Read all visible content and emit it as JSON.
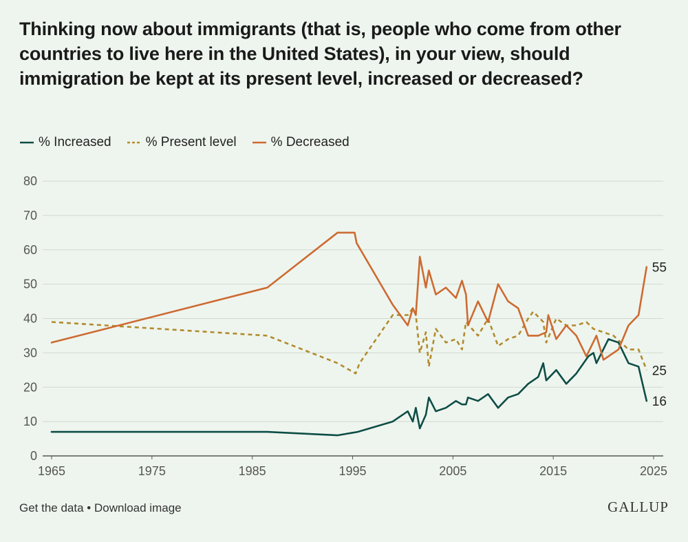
{
  "title": "Thinking now about immigrants (that is, people who come from other countries to live here in the United States), in your view, should immigration be kept at its present level, increased or decreased?",
  "footer": {
    "get_data": "Get the data",
    "separator": " • ",
    "download": "Download image",
    "logo": "GALLUP"
  },
  "chart_data": {
    "type": "line",
    "xlim": [
      1965,
      2025
    ],
    "ylim": [
      0,
      80
    ],
    "x_ticks": [
      "1965",
      "1975",
      "1985",
      "1995",
      "2005",
      "2015",
      "2025"
    ],
    "y_ticks": [
      "0",
      "10",
      "20",
      "30",
      "40",
      "50",
      "60",
      "70",
      "80"
    ],
    "grid": "horizontal",
    "legend_position": "top-left",
    "series": [
      {
        "name": "% Increased",
        "color": "#0d4d46",
        "dash": false,
        "end_label": "16",
        "points": [
          [
            1965,
            7
          ],
          [
            1986.5,
            7
          ],
          [
            1993.5,
            6
          ],
          [
            1995.5,
            7
          ],
          [
            1999,
            10
          ],
          [
            2000.5,
            13
          ],
          [
            2001,
            10
          ],
          [
            2001.3,
            14
          ],
          [
            2001.7,
            8
          ],
          [
            2002.3,
            12
          ],
          [
            2002.6,
            17
          ],
          [
            2003.3,
            13
          ],
          [
            2004.3,
            14
          ],
          [
            2005.3,
            16
          ],
          [
            2005.9,
            15
          ],
          [
            2006.3,
            15
          ],
          [
            2006.5,
            17
          ],
          [
            2007.5,
            16
          ],
          [
            2008.5,
            18
          ],
          [
            2009.5,
            14
          ],
          [
            2010.5,
            17
          ],
          [
            2011.5,
            18
          ],
          [
            2012.5,
            21
          ],
          [
            2013.5,
            23
          ],
          [
            2014,
            27
          ],
          [
            2014.3,
            22
          ],
          [
            2015.3,
            25
          ],
          [
            2016.3,
            21
          ],
          [
            2017.3,
            24
          ],
          [
            2018.5,
            29
          ],
          [
            2019,
            30
          ],
          [
            2019.3,
            27
          ],
          [
            2020.5,
            34
          ],
          [
            2021.5,
            33
          ],
          [
            2022.5,
            27
          ],
          [
            2023.5,
            26
          ],
          [
            2024.3,
            16
          ]
        ]
      },
      {
        "name": "% Present level",
        "color": "#b28a2d",
        "dash": true,
        "end_label": "25",
        "points": [
          [
            1965,
            39
          ],
          [
            1986.5,
            35
          ],
          [
            1993.5,
            27
          ],
          [
            1995.3,
            24
          ],
          [
            1995.7,
            27
          ],
          [
            1999,
            41
          ],
          [
            2000.5,
            41
          ],
          [
            2001,
            43
          ],
          [
            2001.3,
            41
          ],
          [
            2001.7,
            30
          ],
          [
            2002.3,
            36
          ],
          [
            2002.6,
            26
          ],
          [
            2003.3,
            37
          ],
          [
            2004.3,
            33
          ],
          [
            2005.3,
            34
          ],
          [
            2005.9,
            31
          ],
          [
            2006.3,
            39
          ],
          [
            2007.5,
            35
          ],
          [
            2008.5,
            40
          ],
          [
            2009.5,
            32
          ],
          [
            2010.5,
            34
          ],
          [
            2011.5,
            35
          ],
          [
            2012.5,
            40
          ],
          [
            2013,
            42
          ],
          [
            2014,
            39
          ],
          [
            2014.3,
            33
          ],
          [
            2015.3,
            40
          ],
          [
            2016.3,
            38
          ],
          [
            2017.3,
            38
          ],
          [
            2018.3,
            39
          ],
          [
            2019,
            37
          ],
          [
            2021,
            35
          ],
          [
            2022.5,
            31
          ],
          [
            2023.5,
            31
          ],
          [
            2024.3,
            25
          ]
        ]
      },
      {
        "name": "% Decreased",
        "color": "#cd6a31",
        "dash": false,
        "end_label": "55",
        "points": [
          [
            1965,
            33
          ],
          [
            1986.5,
            49
          ],
          [
            1993.5,
            65
          ],
          [
            1995.2,
            65
          ],
          [
            1995.4,
            62
          ],
          [
            1999,
            44
          ],
          [
            2000.5,
            38
          ],
          [
            2001,
            43
          ],
          [
            2001.3,
            41
          ],
          [
            2001.7,
            58
          ],
          [
            2002.3,
            49
          ],
          [
            2002.6,
            54
          ],
          [
            2003.3,
            47
          ],
          [
            2004.3,
            49
          ],
          [
            2005.3,
            46
          ],
          [
            2005.9,
            51
          ],
          [
            2006.3,
            47
          ],
          [
            2006.5,
            38
          ],
          [
            2007.5,
            45
          ],
          [
            2008.5,
            39
          ],
          [
            2009.5,
            50
          ],
          [
            2010.5,
            45
          ],
          [
            2011.5,
            43
          ],
          [
            2012.5,
            35
          ],
          [
            2013.5,
            35
          ],
          [
            2014.3,
            36
          ],
          [
            2014.5,
            41
          ],
          [
            2015.3,
            34
          ],
          [
            2016.3,
            38
          ],
          [
            2017.3,
            35
          ],
          [
            2018.3,
            29
          ],
          [
            2019.3,
            35
          ],
          [
            2020,
            28
          ],
          [
            2021.5,
            31
          ],
          [
            2022.5,
            38
          ],
          [
            2023.5,
            41
          ],
          [
            2024.3,
            55
          ]
        ]
      }
    ]
  }
}
